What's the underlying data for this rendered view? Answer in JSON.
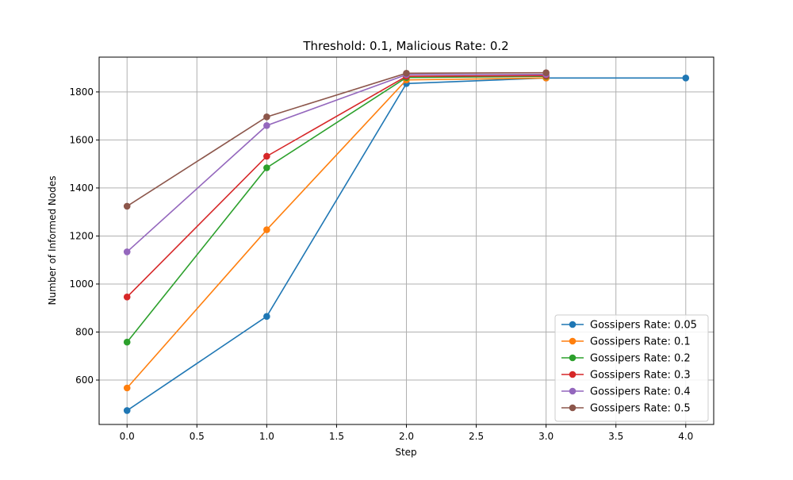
{
  "chart_data": {
    "type": "line",
    "title": "Threshold: 0.1, Malicious Rate: 0.2",
    "xlabel": "Step",
    "ylabel": "Number of Informed Nodes",
    "xlim": [
      -0.2,
      4.2
    ],
    "ylim": [
      415,
      1945
    ],
    "xticks": [
      0.0,
      0.5,
      1.0,
      1.5,
      2.0,
      2.5,
      3.0,
      3.5,
      4.0
    ],
    "xtick_labels": [
      "0.0",
      "0.5",
      "1.0",
      "1.5",
      "2.0",
      "2.5",
      "3.0",
      "3.5",
      "4.0"
    ],
    "yticks": [
      600,
      800,
      1000,
      1200,
      1400,
      1600,
      1800
    ],
    "ytick_labels": [
      "600",
      "800",
      "1000",
      "1200",
      "1400",
      "1600",
      "1800"
    ],
    "grid": true,
    "legend_position": "lower-right",
    "series": [
      {
        "name": "Gossipers Rate: 0.05",
        "color": "#1f77b4",
        "x": [
          0,
          1,
          2,
          3,
          4
        ],
        "values": [
          473,
          865,
          1835,
          1858,
          1858
        ]
      },
      {
        "name": "Gossipers Rate: 0.1",
        "color": "#ff7f0e",
        "x": [
          0,
          1,
          2,
          3
        ],
        "values": [
          567,
          1226,
          1850,
          1858
        ]
      },
      {
        "name": "Gossipers Rate: 0.2",
        "color": "#2ca02c",
        "x": [
          0,
          1,
          2,
          3
        ],
        "values": [
          758,
          1484,
          1860,
          1865
        ]
      },
      {
        "name": "Gossipers Rate: 0.3",
        "color": "#d62728",
        "x": [
          0,
          1,
          2,
          3
        ],
        "values": [
          946,
          1532,
          1865,
          1868
        ]
      },
      {
        "name": "Gossipers Rate: 0.4",
        "color": "#9467bd",
        "x": [
          0,
          1,
          2,
          3
        ],
        "values": [
          1134,
          1660,
          1872,
          1873
        ]
      },
      {
        "name": "Gossipers Rate: 0.5",
        "color": "#8c564b",
        "x": [
          0,
          1,
          2,
          3
        ],
        "values": [
          1324,
          1696,
          1878,
          1880
        ]
      }
    ]
  }
}
